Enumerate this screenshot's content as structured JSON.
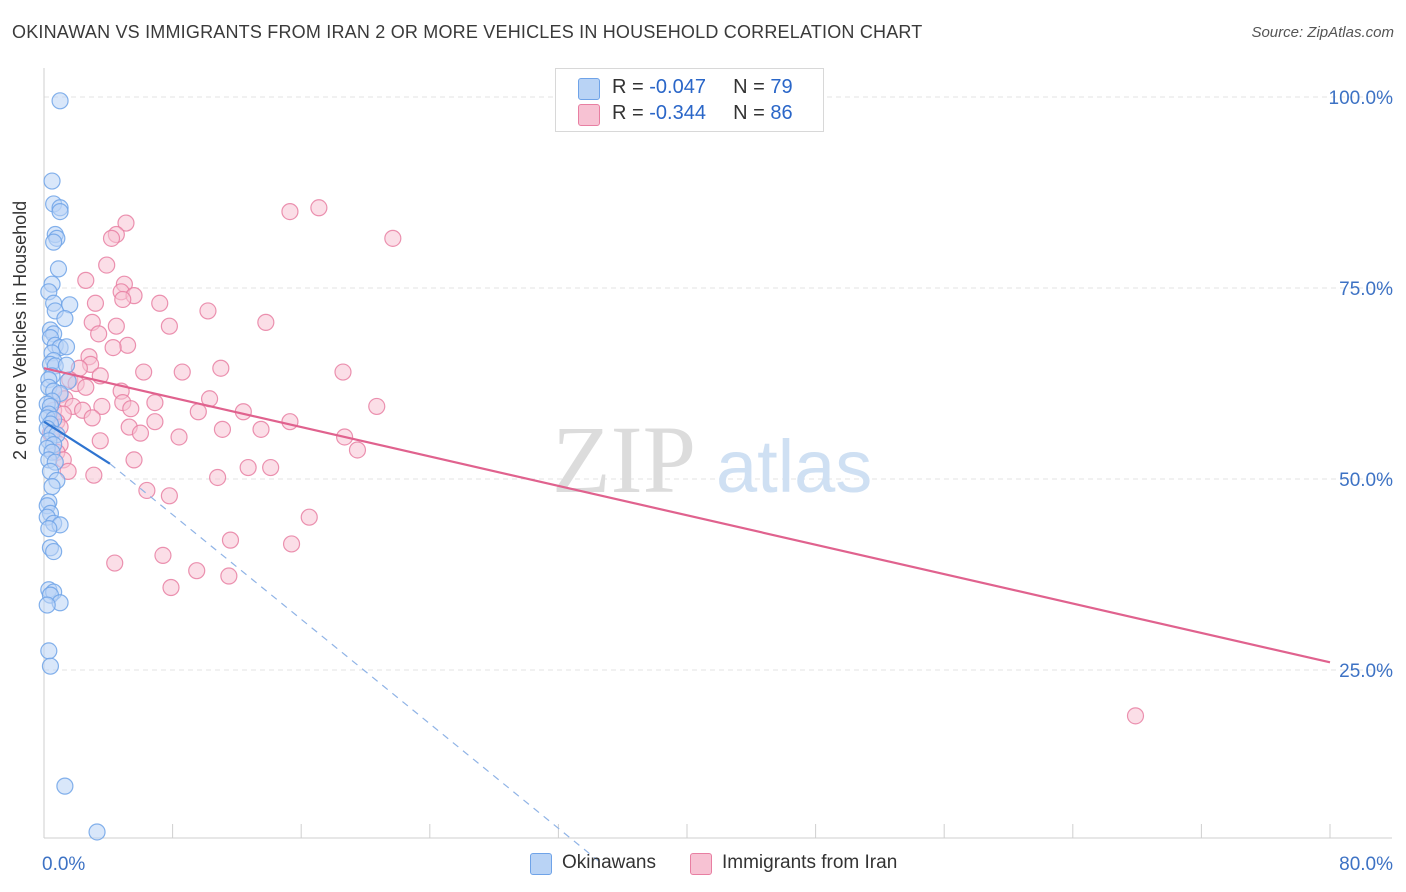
{
  "title": "OKINAWAN VS IMMIGRANTS FROM IRAN 2 OR MORE VEHICLES IN HOUSEHOLD CORRELATION CHART",
  "source": "Source: ZipAtlas.com",
  "watermark": {
    "zip": "ZIP",
    "atlas": "atlas"
  },
  "legend_top": [
    {
      "r_label": "R = ",
      "r_value": "-0.047",
      "n_label": "N = ",
      "n_value": "79",
      "color": "#6fa3e8",
      "fill": "#b9d3f5"
    },
    {
      "r_label": "R = ",
      "r_value": "-0.344",
      "n_label": "N = ",
      "n_value": "86",
      "color": "#e87fa2",
      "fill": "#f7c2d3"
    }
  ],
  "legend_bottom": [
    {
      "label": "Okinawans",
      "fill": "#b9d3f5",
      "color": "#6fa3e8"
    },
    {
      "label": "Immigrants from Iran",
      "fill": "#f7c2d3",
      "color": "#e87fa2"
    }
  ],
  "chart_data": {
    "type": "scatter",
    "title": "OKINAWAN VS IMMIGRANTS FROM IRAN 2 OR MORE VEHICLES IN HOUSEHOLD CORRELATION CHART",
    "xlabel": "",
    "ylabel": "2 or more Vehicles in Household",
    "xlim": [
      0,
      80
    ],
    "ylim": [
      0,
      100
    ],
    "x_tick_labels": [
      "0.0%",
      "80.0%"
    ],
    "y_tick_labels": [
      "100.0%",
      "75.0%",
      "50.0%",
      "25.0%"
    ],
    "y_ticks": [
      100,
      75,
      50,
      25
    ],
    "grid": true,
    "legend_position": "top-center",
    "series": [
      {
        "name": "Okinawans",
        "r": -0.047,
        "n": 79,
        "color": "#6fa3e8",
        "fill": "#b9d3f5",
        "trend_solid": [
          [
            0,
            57.5
          ],
          [
            4.1,
            52.0
          ]
        ],
        "trend_dashed": [
          [
            4.1,
            52.0
          ],
          [
            34.5,
            0
          ]
        ],
        "points": [
          [
            1.0,
            99.5
          ],
          [
            0.5,
            89.0
          ],
          [
            0.6,
            86.0
          ],
          [
            1.0,
            85.5
          ],
          [
            1.0,
            85.0
          ],
          [
            0.7,
            82.0
          ],
          [
            0.8,
            81.5
          ],
          [
            0.6,
            81.0
          ],
          [
            0.9,
            77.5
          ],
          [
            0.5,
            75.5
          ],
          [
            0.3,
            74.5
          ],
          [
            0.6,
            73.0
          ],
          [
            1.6,
            72.8
          ],
          [
            0.7,
            72.0
          ],
          [
            1.3,
            71.0
          ],
          [
            0.4,
            69.5
          ],
          [
            0.6,
            69.0
          ],
          [
            0.4,
            68.5
          ],
          [
            0.7,
            67.5
          ],
          [
            1.0,
            67.2
          ],
          [
            1.4,
            67.3
          ],
          [
            0.5,
            66.5
          ],
          [
            0.6,
            65.5
          ],
          [
            0.4,
            65.0
          ],
          [
            0.7,
            64.8
          ],
          [
            1.4,
            64.9
          ],
          [
            0.5,
            63.5
          ],
          [
            0.3,
            63.0
          ],
          [
            1.5,
            62.8
          ],
          [
            0.3,
            62.0
          ],
          [
            0.6,
            61.5
          ],
          [
            1.0,
            61.2
          ],
          [
            0.5,
            60.2
          ],
          [
            0.2,
            59.8
          ],
          [
            0.4,
            59.5
          ],
          [
            0.3,
            58.5
          ],
          [
            0.2,
            58.0
          ],
          [
            0.6,
            57.8
          ],
          [
            0.4,
            57.2
          ],
          [
            0.2,
            56.6
          ],
          [
            0.5,
            56.0
          ],
          [
            0.8,
            55.8
          ],
          [
            0.3,
            55.0
          ],
          [
            0.6,
            54.5
          ],
          [
            0.2,
            54.0
          ],
          [
            0.5,
            53.5
          ],
          [
            0.3,
            52.5
          ],
          [
            0.7,
            52.2
          ],
          [
            0.4,
            51.0
          ],
          [
            0.8,
            49.8
          ],
          [
            0.5,
            49.0
          ],
          [
            0.3,
            47.0
          ],
          [
            0.2,
            46.5
          ],
          [
            0.4,
            45.5
          ],
          [
            0.2,
            45.0
          ],
          [
            0.6,
            44.2
          ],
          [
            1.0,
            44.0
          ],
          [
            0.3,
            43.5
          ],
          [
            0.4,
            41.0
          ],
          [
            0.6,
            40.5
          ],
          [
            0.3,
            35.5
          ],
          [
            0.6,
            35.2
          ],
          [
            0.4,
            34.8
          ],
          [
            1.0,
            33.8
          ],
          [
            0.2,
            33.5
          ],
          [
            0.3,
            27.5
          ],
          [
            0.4,
            25.5
          ],
          [
            1.3,
            9.8
          ],
          [
            3.3,
            3.8
          ]
        ]
      },
      {
        "name": "Immigrants from Iran",
        "r": -0.344,
        "n": 86,
        "color": "#e87fa2",
        "fill": "#f7c2d3",
        "trend_solid": [
          [
            0,
            64.5
          ],
          [
            80,
            26.0
          ]
        ],
        "points": [
          [
            15.3,
            85.0
          ],
          [
            17.1,
            85.5
          ],
          [
            21.7,
            81.5
          ],
          [
            5.1,
            83.5
          ],
          [
            4.5,
            82.0
          ],
          [
            4.2,
            81.5
          ],
          [
            3.9,
            78.0
          ],
          [
            2.6,
            76.0
          ],
          [
            5.0,
            75.5
          ],
          [
            4.8,
            74.5
          ],
          [
            5.6,
            74.0
          ],
          [
            4.9,
            73.5
          ],
          [
            3.2,
            73.0
          ],
          [
            7.2,
            73.0
          ],
          [
            10.2,
            72.0
          ],
          [
            3.0,
            70.5
          ],
          [
            4.5,
            70.0
          ],
          [
            13.8,
            70.5
          ],
          [
            7.8,
            70.0
          ],
          [
            3.4,
            69.0
          ],
          [
            5.2,
            67.5
          ],
          [
            4.3,
            67.2
          ],
          [
            2.8,
            66.0
          ],
          [
            2.9,
            65.0
          ],
          [
            2.2,
            64.5
          ],
          [
            11.0,
            64.5
          ],
          [
            6.2,
            64.0
          ],
          [
            8.6,
            64.0
          ],
          [
            18.6,
            64.0
          ],
          [
            3.5,
            63.5
          ],
          [
            1.6,
            63.0
          ],
          [
            2.0,
            62.5
          ],
          [
            2.6,
            62.0
          ],
          [
            4.8,
            61.5
          ],
          [
            1.0,
            61.0
          ],
          [
            1.3,
            60.5
          ],
          [
            10.3,
            60.5
          ],
          [
            4.9,
            60.0
          ],
          [
            6.9,
            60.0
          ],
          [
            1.8,
            59.5
          ],
          [
            2.4,
            59.0
          ],
          [
            3.6,
            59.5
          ],
          [
            0.6,
            59.0
          ],
          [
            5.4,
            59.2
          ],
          [
            9.6,
            58.8
          ],
          [
            12.4,
            58.8
          ],
          [
            20.7,
            59.5
          ],
          [
            1.2,
            58.5
          ],
          [
            3.0,
            58.0
          ],
          [
            0.8,
            57.5
          ],
          [
            6.9,
            57.5
          ],
          [
            15.3,
            57.5
          ],
          [
            1.0,
            56.8
          ],
          [
            5.3,
            56.8
          ],
          [
            11.1,
            56.5
          ],
          [
            13.5,
            56.5
          ],
          [
            0.4,
            56.0
          ],
          [
            6.0,
            56.0
          ],
          [
            8.4,
            55.5
          ],
          [
            18.7,
            55.5
          ],
          [
            3.5,
            55.0
          ],
          [
            1.0,
            54.5
          ],
          [
            19.5,
            53.8
          ],
          [
            0.8,
            53.5
          ],
          [
            1.2,
            52.5
          ],
          [
            5.6,
            52.5
          ],
          [
            12.7,
            51.5
          ],
          [
            14.1,
            51.5
          ],
          [
            1.5,
            51.0
          ],
          [
            3.1,
            50.5
          ],
          [
            10.8,
            50.2
          ],
          [
            6.4,
            48.5
          ],
          [
            7.8,
            47.8
          ],
          [
            16.5,
            45.0
          ],
          [
            11.6,
            42.0
          ],
          [
            15.4,
            41.5
          ],
          [
            7.4,
            40.0
          ],
          [
            4.4,
            39.0
          ],
          [
            9.5,
            38.0
          ],
          [
            11.5,
            37.3
          ],
          [
            7.9,
            35.8
          ],
          [
            67.9,
            19.0
          ]
        ]
      }
    ]
  }
}
